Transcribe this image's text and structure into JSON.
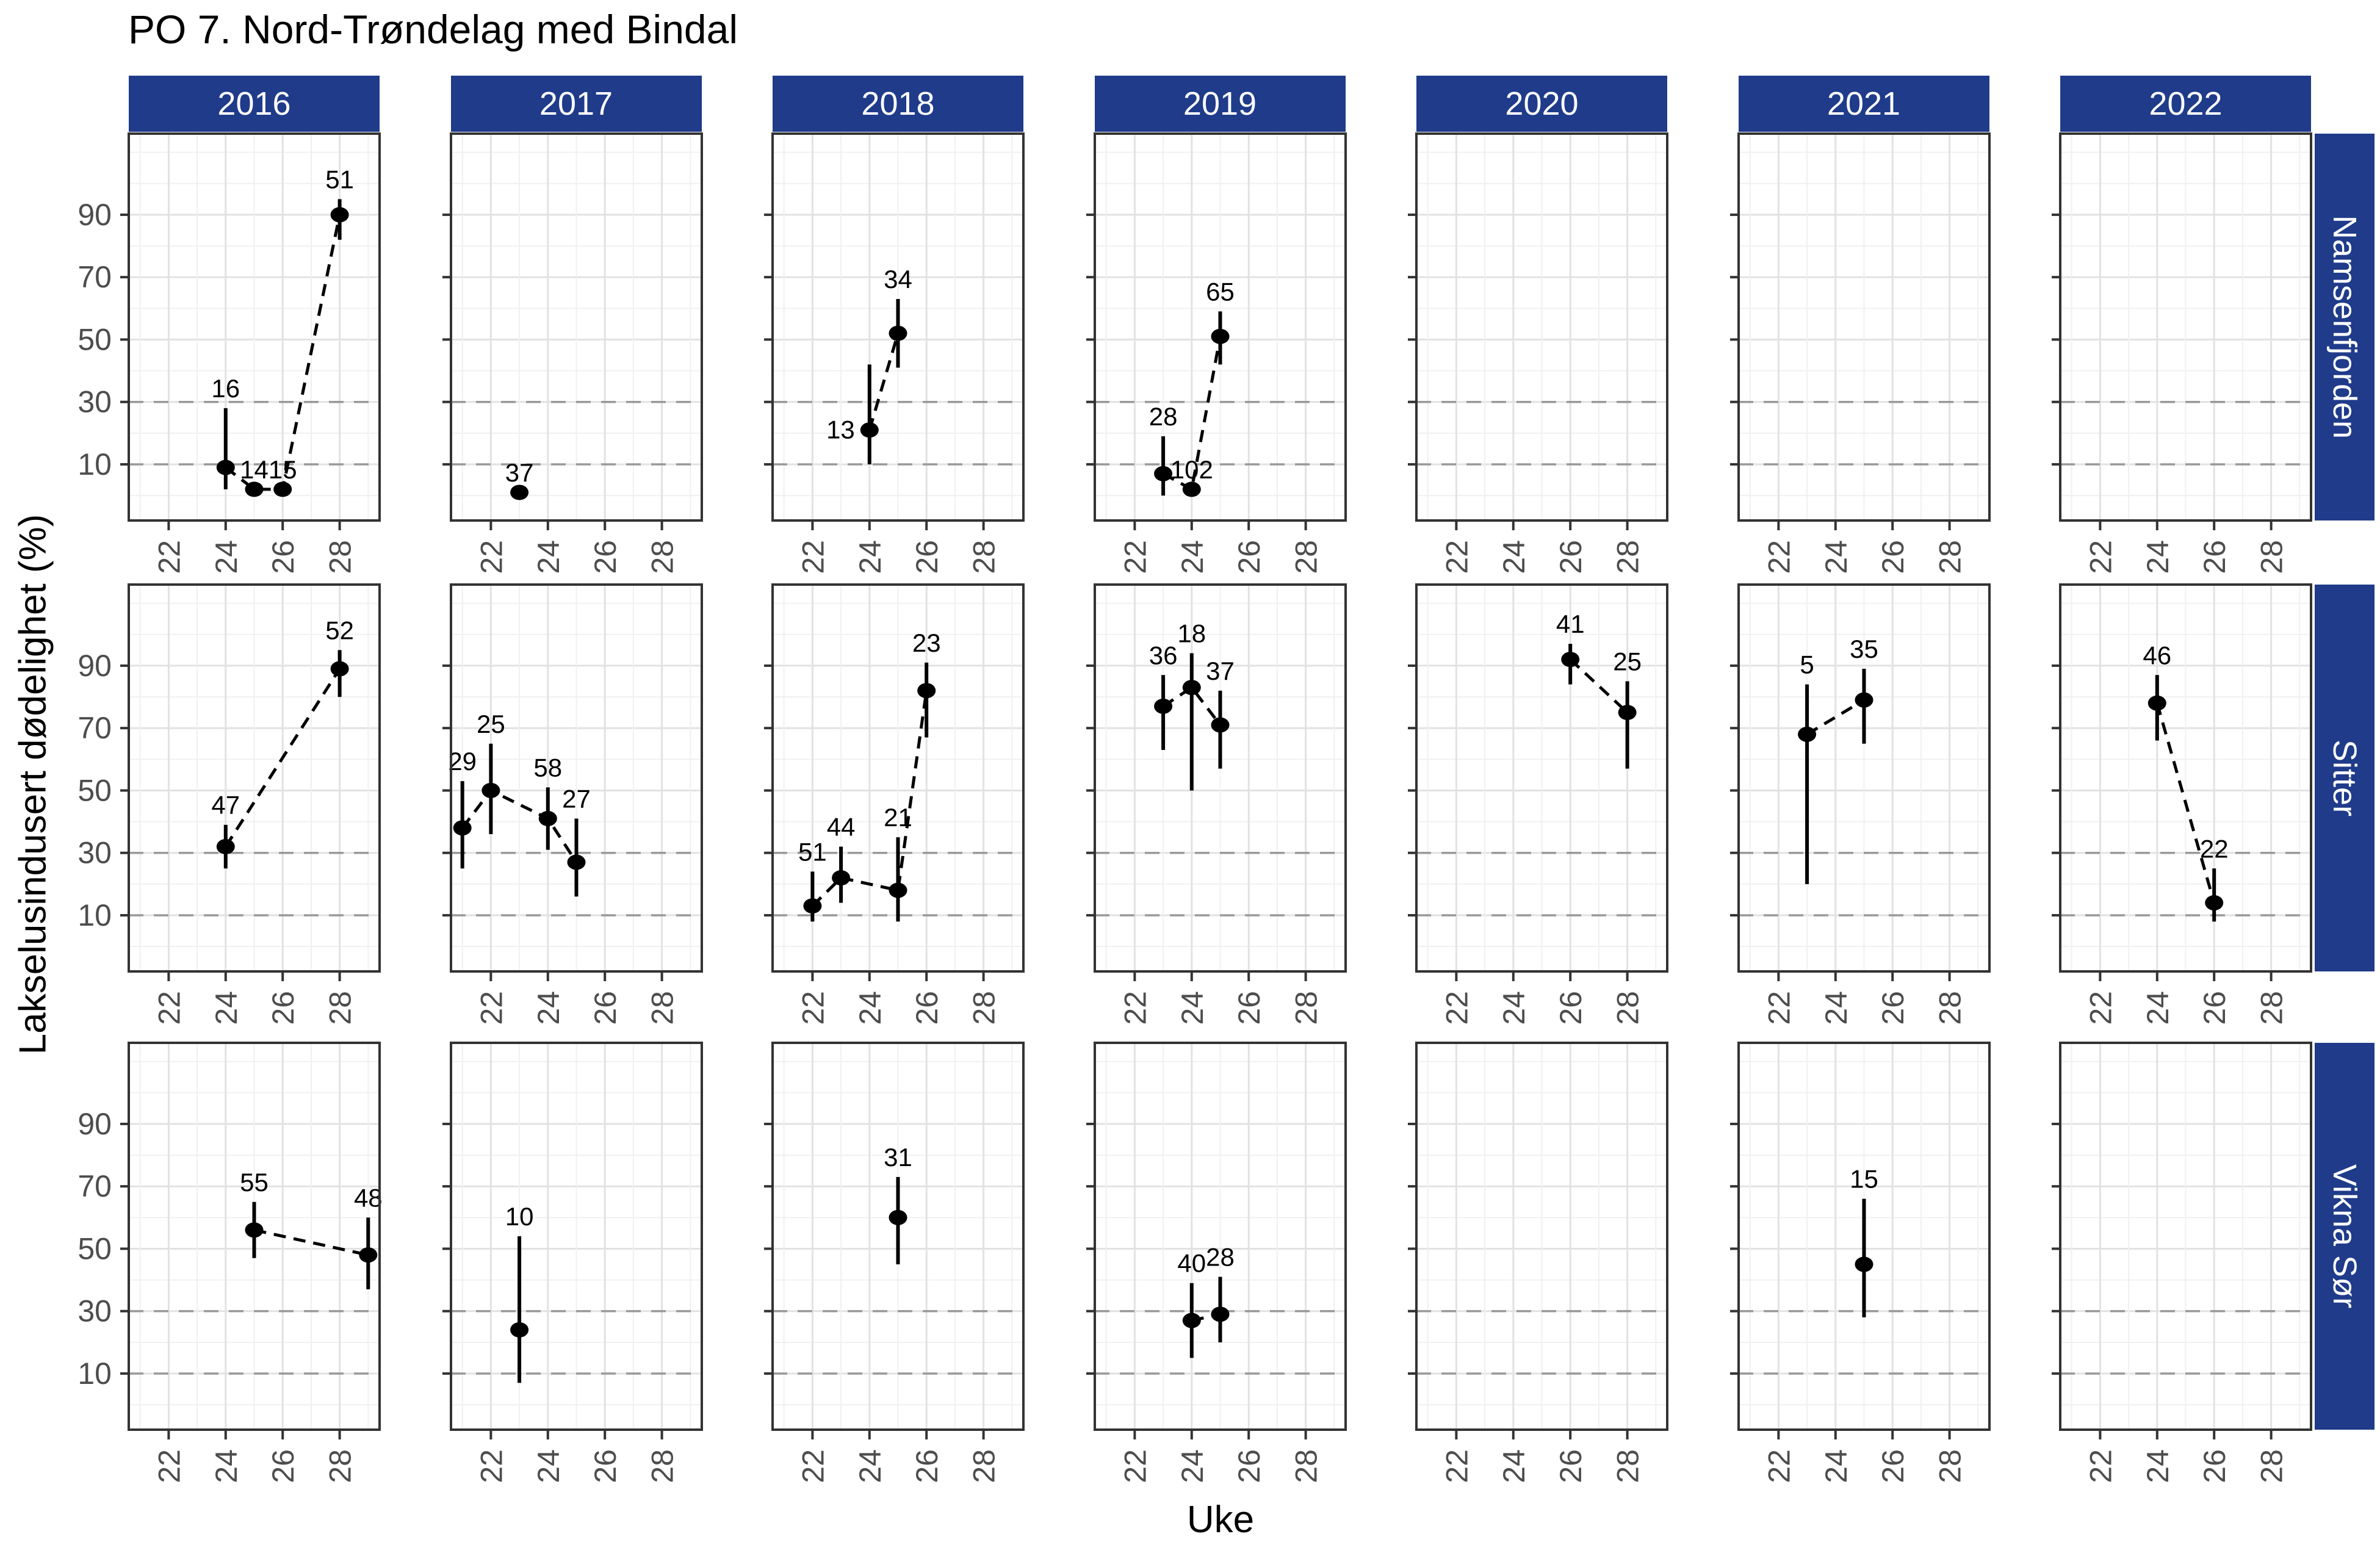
{
  "title": "PO 7. Nord-Trøndelag med Bindal",
  "axes": {
    "x_label": "Uke",
    "y_label": "Lakselusindusert dødelighet (%)",
    "x_ticks": [
      22,
      24,
      26,
      28
    ],
    "y_ticks": [
      90,
      70,
      50,
      30,
      10
    ],
    "dashed_reference_lines": [
      10,
      30
    ]
  },
  "colors": {
    "strip_bg": "#1f3b8a",
    "strip_text": "#ffffff",
    "panel_border": "#333333",
    "grid_major": "#e2e2e2",
    "grid_minor": "#f0f0f0",
    "dashed_line": "#999999",
    "tick_label": "#4d4d4d",
    "point": "#000000",
    "label_text": "#000000"
  },
  "chart_data": {
    "type": "scatter",
    "title": "PO 7. Nord-Trøndelag med Bindal",
    "xlabel": "Uke",
    "ylabel": "Lakselusindusert dødelighet (%)",
    "facet_cols": [
      "2016",
      "2017",
      "2018",
      "2019",
      "2020",
      "2021",
      "2022"
    ],
    "facet_rows": [
      "Namsenfjorden",
      "Sitter",
      "Vikna Sør"
    ],
    "x_ticks": [
      22,
      24,
      26,
      28
    ],
    "x_minor_ticks": [
      21,
      23,
      25,
      27,
      29
    ],
    "y_ticks": [
      90,
      70,
      50,
      30,
      10
    ],
    "y_gridlines": [
      0,
      10,
      20,
      30,
      40,
      50,
      60,
      70,
      80,
      90,
      100,
      110
    ],
    "dashed_reference_lines": [
      10,
      30
    ],
    "x_range": [
      20.6,
      29.4
    ],
    "y_range": [
      -8,
      116
    ],
    "grid": true,
    "legend": "none",
    "panels": [
      {
        "row": "Namsenfjorden",
        "col": "2016",
        "points": [
          {
            "week": 24,
            "value": 9,
            "lo": 2,
            "hi": 28,
            "n": "16"
          },
          {
            "week": 25,
            "value": 2,
            "lo": null,
            "hi": null,
            "n": "14"
          },
          {
            "week": 26,
            "value": 2,
            "lo": null,
            "hi": null,
            "n": "15"
          },
          {
            "week": 28,
            "value": 90,
            "lo": 82,
            "hi": 95,
            "n": "51"
          }
        ]
      },
      {
        "row": "Namsenfjorden",
        "col": "2017",
        "points": [
          {
            "week": 23,
            "value": 1,
            "lo": null,
            "hi": null,
            "n": "37"
          }
        ]
      },
      {
        "row": "Namsenfjorden",
        "col": "2018",
        "points": [
          {
            "week": 24,
            "value": 21,
            "lo": 10,
            "hi": 42,
            "n": "13",
            "label_side": "left"
          },
          {
            "week": 25,
            "value": 52,
            "lo": 41,
            "hi": 63,
            "n": "34"
          }
        ]
      },
      {
        "row": "Namsenfjorden",
        "col": "2019",
        "points": [
          {
            "week": 23,
            "value": 7,
            "lo": 0,
            "hi": 19,
            "n": "28"
          },
          {
            "week": 24,
            "value": 2,
            "lo": null,
            "hi": null,
            "n": "102"
          },
          {
            "week": 25,
            "value": 51,
            "lo": 42,
            "hi": 59,
            "n": "65"
          }
        ]
      },
      {
        "row": "Namsenfjorden",
        "col": "2020",
        "points": []
      },
      {
        "row": "Namsenfjorden",
        "col": "2021",
        "points": []
      },
      {
        "row": "Namsenfjorden",
        "col": "2022",
        "points": []
      },
      {
        "row": "Sitter",
        "col": "2016",
        "points": [
          {
            "week": 24,
            "value": 32,
            "lo": 25,
            "hi": 39,
            "n": "47"
          },
          {
            "week": 28,
            "value": 89,
            "lo": 80,
            "hi": 95,
            "n": "52"
          }
        ]
      },
      {
        "row": "Sitter",
        "col": "2017",
        "points": [
          {
            "week": 21,
            "value": 38,
            "lo": 25,
            "hi": 53,
            "n": "29"
          },
          {
            "week": 22,
            "value": 50,
            "lo": 36,
            "hi": 65,
            "n": "25"
          },
          {
            "week": 24,
            "value": 41,
            "lo": 31,
            "hi": 51,
            "n": "58"
          },
          {
            "week": 25,
            "value": 27,
            "lo": 16,
            "hi": 41,
            "n": "27"
          }
        ]
      },
      {
        "row": "Sitter",
        "col": "2018",
        "points": [
          {
            "week": 22,
            "value": 13,
            "lo": 8,
            "hi": 24,
            "n": "51"
          },
          {
            "week": 23,
            "value": 22,
            "lo": 14,
            "hi": 32,
            "n": "44"
          },
          {
            "week": 25,
            "value": 18,
            "lo": 8,
            "hi": 35,
            "n": "21"
          },
          {
            "week": 26,
            "value": 82,
            "lo": 67,
            "hi": 91,
            "n": "23"
          }
        ]
      },
      {
        "row": "Sitter",
        "col": "2019",
        "points": [
          {
            "week": 23,
            "value": 77,
            "lo": 63,
            "hi": 87,
            "n": "36"
          },
          {
            "week": 24,
            "value": 83,
            "lo": 50,
            "hi": 94,
            "n": "18"
          },
          {
            "week": 25,
            "value": 71,
            "lo": 57,
            "hi": 82,
            "n": "37"
          }
        ]
      },
      {
        "row": "Sitter",
        "col": "2020",
        "points": [
          {
            "week": 26,
            "value": 92,
            "lo": 84,
            "hi": 97,
            "n": "41"
          },
          {
            "week": 28,
            "value": 75,
            "lo": 57,
            "hi": 85,
            "n": "25"
          }
        ]
      },
      {
        "row": "Sitter",
        "col": "2021",
        "points": [
          {
            "week": 23,
            "value": 68,
            "lo": 20,
            "hi": 84,
            "n": "5"
          },
          {
            "week": 25,
            "value": 79,
            "lo": 65,
            "hi": 89,
            "n": "35"
          }
        ]
      },
      {
        "row": "Sitter",
        "col": "2022",
        "points": [
          {
            "week": 24,
            "value": 78,
            "lo": 66,
            "hi": 87,
            "n": "46"
          },
          {
            "week": 26,
            "value": 14,
            "lo": 8,
            "hi": 25,
            "n": "22"
          }
        ]
      },
      {
        "row": "Vikna Sør",
        "col": "2016",
        "points": [
          {
            "week": 25,
            "value": 56,
            "lo": 47,
            "hi": 65,
            "n": "55"
          },
          {
            "week": 29,
            "value": 48,
            "lo": 37,
            "hi": 60,
            "n": "48"
          }
        ]
      },
      {
        "row": "Vikna Sør",
        "col": "2017",
        "points": [
          {
            "week": 23,
            "value": 24,
            "lo": 7,
            "hi": 54,
            "n": "10"
          }
        ]
      },
      {
        "row": "Vikna Sør",
        "col": "2018",
        "points": [
          {
            "week": 25,
            "value": 60,
            "lo": 45,
            "hi": 73,
            "n": "31"
          }
        ]
      },
      {
        "row": "Vikna Sør",
        "col": "2019",
        "points": [
          {
            "week": 24,
            "value": 27,
            "lo": 15,
            "hi": 39,
            "n": "40"
          },
          {
            "week": 25,
            "value": 29,
            "lo": 20,
            "hi": 41,
            "n": "28"
          }
        ]
      },
      {
        "row": "Vikna Sør",
        "col": "2020",
        "points": []
      },
      {
        "row": "Vikna Sør",
        "col": "2021",
        "points": [
          {
            "week": 25,
            "value": 45,
            "lo": 28,
            "hi": 66,
            "n": "15"
          }
        ]
      },
      {
        "row": "Vikna Sør",
        "col": "2022",
        "points": []
      }
    ]
  }
}
